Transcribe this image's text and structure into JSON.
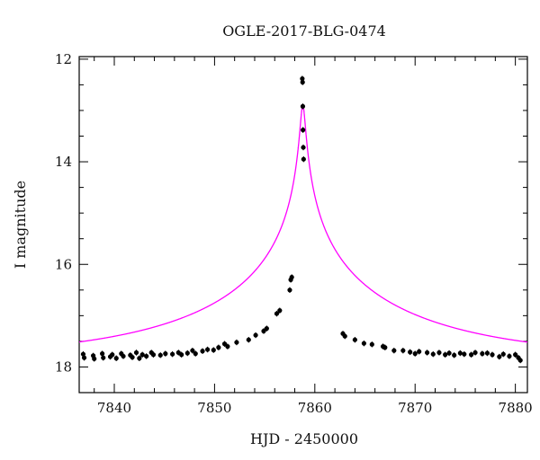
{
  "chart_data": {
    "type": "scatter",
    "title": "OGLE-2017-BLG-0474",
    "xlabel": "HJD - 2450000",
    "ylabel": "I magnitude",
    "xlim": [
      7836.5,
      7881.2
    ],
    "ylim": [
      18.5,
      11.95
    ],
    "y_inverted": true,
    "xticks": [
      7840,
      7850,
      7860,
      7870,
      7880
    ],
    "yticks": [
      12,
      14,
      16,
      18
    ],
    "xtick_labels": [
      "7840",
      "7850",
      "7860",
      "7870",
      "7880"
    ],
    "ytick_labels": [
      "12",
      "14",
      "16",
      "18"
    ],
    "grid": false,
    "series": [
      {
        "kind": "points",
        "color": "#000000",
        "points": [
          [
            7836.9,
            17.75
          ],
          [
            7837.0,
            17.82
          ],
          [
            7837.9,
            17.78
          ],
          [
            7838.0,
            17.84
          ],
          [
            7838.8,
            17.74
          ],
          [
            7838.9,
            17.82
          ],
          [
            7839.6,
            17.8
          ],
          [
            7839.8,
            17.76
          ],
          [
            7840.2,
            17.83
          ],
          [
            7840.7,
            17.74
          ],
          [
            7840.9,
            17.79
          ],
          [
            7841.6,
            17.77
          ],
          [
            7841.8,
            17.81
          ],
          [
            7842.2,
            17.72
          ],
          [
            7842.5,
            17.83
          ],
          [
            7842.8,
            17.76
          ],
          [
            7843.2,
            17.79
          ],
          [
            7843.7,
            17.72
          ],
          [
            7843.9,
            17.76
          ],
          [
            7844.6,
            17.77
          ],
          [
            7845.1,
            17.74
          ],
          [
            7845.8,
            17.75
          ],
          [
            7846.4,
            17.72
          ],
          [
            7846.7,
            17.76
          ],
          [
            7847.3,
            17.73
          ],
          [
            7847.8,
            17.68
          ],
          [
            7848.1,
            17.74
          ],
          [
            7848.8,
            17.69
          ],
          [
            7849.3,
            17.66
          ],
          [
            7849.9,
            17.67
          ],
          [
            7850.4,
            17.62
          ],
          [
            7851.0,
            17.55
          ],
          [
            7851.3,
            17.6
          ],
          [
            7852.2,
            17.52
          ],
          [
            7853.4,
            17.47
          ],
          [
            7854.1,
            17.38
          ],
          [
            7854.9,
            17.3
          ],
          [
            7855.2,
            17.25
          ],
          [
            7856.2,
            16.96
          ],
          [
            7856.5,
            16.9
          ],
          [
            7857.5,
            16.5
          ],
          [
            7857.6,
            16.3
          ],
          [
            7857.7,
            16.25
          ],
          [
            7858.75,
            12.38
          ],
          [
            7858.78,
            12.45
          ],
          [
            7858.8,
            12.92
          ],
          [
            7858.82,
            13.38
          ],
          [
            7858.85,
            13.72
          ],
          [
            7858.88,
            13.95
          ],
          [
            7862.8,
            17.35
          ],
          [
            7863.0,
            17.4
          ],
          [
            7864.0,
            17.47
          ],
          [
            7864.9,
            17.54
          ],
          [
            7865.7,
            17.56
          ],
          [
            7866.8,
            17.6
          ],
          [
            7867.0,
            17.62
          ],
          [
            7867.9,
            17.68
          ],
          [
            7868.8,
            17.68
          ],
          [
            7869.5,
            17.71
          ],
          [
            7870.0,
            17.74
          ],
          [
            7870.4,
            17.7
          ],
          [
            7871.2,
            17.72
          ],
          [
            7871.8,
            17.75
          ],
          [
            7872.4,
            17.72
          ],
          [
            7873.0,
            17.76
          ],
          [
            7873.4,
            17.73
          ],
          [
            7873.9,
            17.77
          ],
          [
            7874.5,
            17.73
          ],
          [
            7874.9,
            17.75
          ],
          [
            7875.6,
            17.76
          ],
          [
            7876.0,
            17.72
          ],
          [
            7876.7,
            17.74
          ],
          [
            7877.2,
            17.73
          ],
          [
            7877.7,
            17.76
          ],
          [
            7878.4,
            17.8
          ],
          [
            7878.8,
            17.75
          ],
          [
            7879.4,
            17.79
          ],
          [
            7880.0,
            17.76
          ],
          [
            7880.3,
            17.82
          ],
          [
            7880.5,
            17.87
          ]
        ]
      },
      {
        "kind": "model-curve",
        "color": "#ff00ff",
        "t0": 7858.8,
        "tE": 23.0,
        "u0": 0.0105,
        "baseline_mag": 17.85
      }
    ]
  }
}
